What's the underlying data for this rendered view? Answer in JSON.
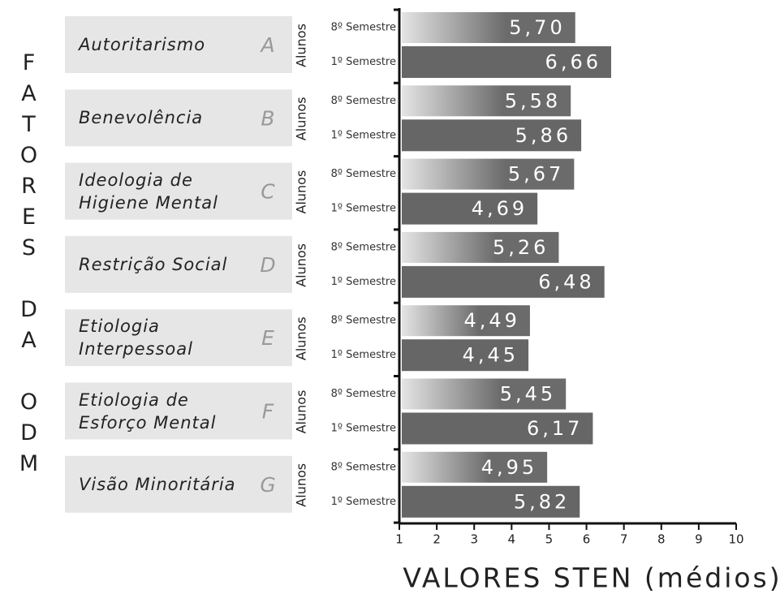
{
  "chart_data": {
    "type": "bar",
    "orientation": "horizontal",
    "side_label": "FATORES DA ODM",
    "group_label": "Alunos",
    "xlabel": "VALORES STEN (médios)",
    "categories": [
      "Autoritarismo",
      "Benevolência",
      "Ideologia de\nHigiene Mental",
      "Restrição Social",
      "Etiologia\nInterpessoal",
      "Etiologia de\nEsforço Mental",
      "Visão Minoritária"
    ],
    "letters": [
      "A",
      "B",
      "C",
      "D",
      "E",
      "F",
      "G"
    ],
    "series": [
      {
        "name": "8º Semestre",
        "color": "#6b6b6b",
        "values": [
          5.7,
          5.58,
          5.67,
          5.26,
          4.49,
          5.45,
          4.95
        ],
        "value_labels": [
          "5,70",
          "5,58",
          "5,67",
          "5,26",
          "4,49",
          "5,45",
          "4,95"
        ]
      },
      {
        "name": "1º Semestre",
        "color": "#666666",
        "values": [
          6.66,
          5.86,
          4.69,
          6.48,
          4.45,
          6.17,
          5.82
        ],
        "value_labels": [
          "6,66",
          "5,86",
          "4,69",
          "6,48",
          "4,45",
          "6,17",
          "5,82"
        ]
      }
    ],
    "xlim": [
      1,
      10
    ],
    "xticks": [
      1,
      2,
      3,
      4,
      5,
      6,
      7,
      8,
      9,
      10
    ]
  }
}
